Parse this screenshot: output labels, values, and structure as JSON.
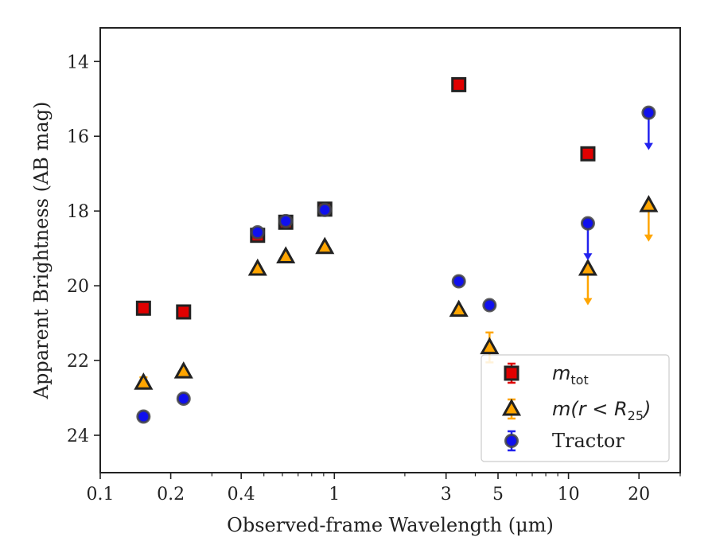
{
  "chart_data": {
    "type": "scatter",
    "xlabel": "Observed-frame Wavelength (μm)",
    "ylabel": "Apparent Brightness (AB mag)",
    "x_scale": "log",
    "xlim": [
      0.1,
      30
    ],
    "ylim": [
      25,
      13.1
    ],
    "y_inverted": true,
    "x_ticks": [
      {
        "value": 0.1,
        "label": "0.1"
      },
      {
        "value": 0.2,
        "label": "0.2"
      },
      {
        "value": 0.4,
        "label": "0.4"
      },
      {
        "value": 1,
        "label": "1"
      },
      {
        "value": 3,
        "label": "3"
      },
      {
        "value": 5,
        "label": "5"
      },
      {
        "value": 10,
        "label": "10"
      },
      {
        "value": 20,
        "label": "20"
      }
    ],
    "x_minor_ticks": [
      0.3,
      0.5,
      0.6,
      0.7,
      0.8,
      0.9,
      2,
      4,
      6,
      7,
      8,
      9,
      30
    ],
    "y_ticks": [
      14,
      16,
      18,
      20,
      22,
      24
    ],
    "grid": false,
    "legend_position": "lower-right",
    "series": [
      {
        "name": "m_tot",
        "legend_main": "m",
        "legend_sub": "tot",
        "marker": "square",
        "color": "#e00000",
        "edge": "#222222",
        "errcolor": "#e00000",
        "points": [
          {
            "x": 0.153,
            "y": 20.6
          },
          {
            "x": 0.227,
            "y": 20.7
          },
          {
            "x": 0.47,
            "y": 18.65
          },
          {
            "x": 0.62,
            "y": 18.3
          },
          {
            "x": 0.91,
            "y": 17.95
          },
          {
            "x": 3.4,
            "y": 14.62
          },
          {
            "x": 12.1,
            "y": 16.47
          }
        ]
      },
      {
        "name": "m(r < R_25)",
        "legend_main": "m(r < R",
        "legend_sub": "25",
        "legend_end": ")",
        "marker": "triangle",
        "color": "#ffa500",
        "edge": "#222222",
        "errcolor": "#ffa500",
        "points": [
          {
            "x": 0.153,
            "y": 22.6,
            "err": 0.15
          },
          {
            "x": 0.227,
            "y": 22.3
          },
          {
            "x": 0.47,
            "y": 19.55
          },
          {
            "x": 0.62,
            "y": 19.22
          },
          {
            "x": 0.91,
            "y": 18.97
          },
          {
            "x": 3.4,
            "y": 20.65
          },
          {
            "x": 4.6,
            "y": 21.65,
            "err": 0.4
          },
          {
            "x": 12.1,
            "y": 19.55,
            "upper_limit": true,
            "arrow_to": 20.5
          },
          {
            "x": 22.0,
            "y": 17.85,
            "upper_limit": true,
            "arrow_to": 18.8
          }
        ]
      },
      {
        "name": "Tractor",
        "legend_main": "Tractor",
        "marker": "circle",
        "color": "#1010ee",
        "edge": "#444444",
        "errcolor": "#2222ee",
        "points": [
          {
            "x": 0.153,
            "y": 23.5
          },
          {
            "x": 0.227,
            "y": 23.02
          },
          {
            "x": 0.47,
            "y": 18.57
          },
          {
            "x": 0.62,
            "y": 18.27
          },
          {
            "x": 0.91,
            "y": 17.97
          },
          {
            "x": 3.4,
            "y": 19.88
          },
          {
            "x": 4.6,
            "y": 20.52
          },
          {
            "x": 12.1,
            "y": 18.33,
            "upper_limit": true,
            "arrow_to": 19.3
          },
          {
            "x": 22.0,
            "y": 15.37,
            "upper_limit": true,
            "arrow_to": 16.35
          }
        ]
      }
    ]
  }
}
